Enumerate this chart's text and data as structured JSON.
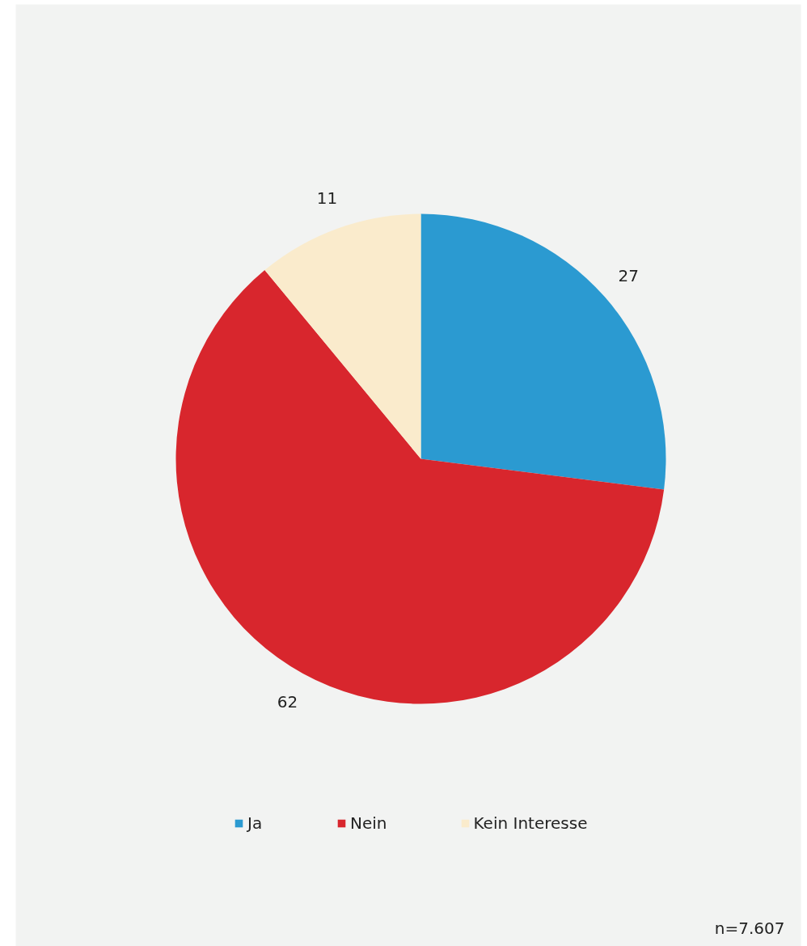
{
  "chart_data": {
    "type": "pie",
    "categories": [
      "Ja",
      "Nein",
      "Kein Interesse"
    ],
    "values": [
      27,
      62,
      11
    ],
    "colors": [
      "#2b9ad1",
      "#d8262d",
      "#faebcc"
    ],
    "data_labels": true,
    "legend": "bottom",
    "annotations": [
      "n=7.607"
    ]
  }
}
